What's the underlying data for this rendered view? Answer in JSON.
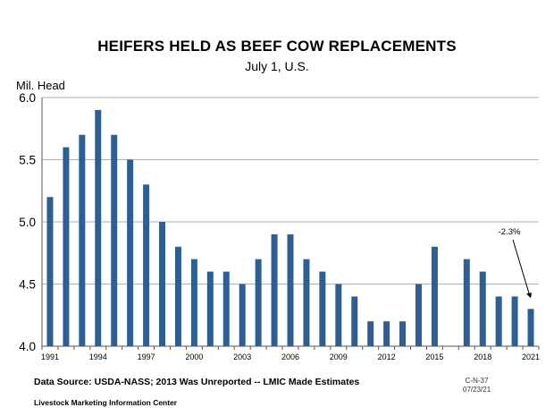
{
  "chart_data": {
    "type": "bar",
    "title": "HEIFERS HELD AS BEEF COW REPLACEMENTS",
    "subtitle": "July 1, U.S.",
    "ylabel": "Mil. Head",
    "xlabel": "",
    "ylim": [
      4.0,
      6.0
    ],
    "yticks": [
      "4.0",
      "4.5",
      "5.0",
      "5.5",
      "6.0"
    ],
    "ytick_values": [
      4.0,
      4.5,
      5.0,
      5.5,
      6.0
    ],
    "xticks": [
      "1991",
      "1994",
      "1997",
      "2000",
      "2003",
      "2006",
      "2009",
      "2012",
      "2015",
      "2018",
      "2021"
    ],
    "grid": true,
    "bar_color": "#2E5F94",
    "categories": [
      1991,
      1992,
      1993,
      1994,
      1995,
      1996,
      1997,
      1998,
      1999,
      2000,
      2001,
      2002,
      2003,
      2004,
      2005,
      2006,
      2007,
      2008,
      2009,
      2010,
      2011,
      2012,
      2013,
      2014,
      2015,
      2016,
      2017,
      2018,
      2019,
      2020,
      2021
    ],
    "values": [
      5.2,
      5.6,
      5.7,
      5.9,
      5.7,
      5.5,
      5.3,
      5.0,
      4.8,
      4.7,
      4.6,
      4.6,
      4.5,
      4.7,
      4.9,
      4.9,
      4.7,
      4.6,
      4.5,
      4.4,
      4.2,
      4.2,
      4.2,
      4.5,
      4.8,
      null,
      4.7,
      4.6,
      4.4,
      4.4,
      4.3
    ],
    "annotation": {
      "text": "-2.3%",
      "year": 2021
    }
  },
  "footer": {
    "source": "Data Source:  USDA-NASS; 2013 Was Unreported -- LMIC Made Estimates",
    "org": "Livestock Marketing Information Center",
    "code_line1": "C-N-37",
    "code_line2": "07/23/21"
  }
}
